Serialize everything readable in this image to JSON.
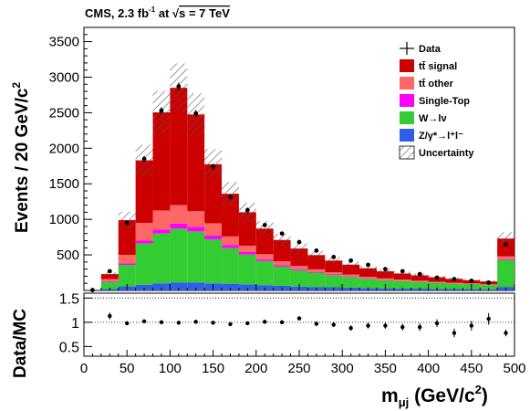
{
  "chart_data": {
    "type": "bar",
    "title": "CMS, 2.3 fb",
    "title_sup": "-1",
    "title_mid": " at ",
    "title_sqrt": "s = 7 TeV",
    "ylabel_main": "Events / 20 GeV/c",
    "ylabel_main_sup": "2",
    "ylabel_ratio": "Data/MC",
    "xlabel": "m",
    "xlabel_sub": "μj",
    "xlabel_unit": " (GeV/c",
    "xlabel_unit_sup": "2",
    "xlabel_unit_close": ")",
    "xlim": [
      0,
      500
    ],
    "ylim": [
      0,
      3700
    ],
    "ratio_ylim": [
      0.3,
      1.6
    ],
    "x_ticks": [
      "0",
      "50",
      "100",
      "150",
      "200",
      "250",
      "300",
      "350",
      "400",
      "450",
      "500"
    ],
    "y_ticks": [
      "500",
      "1000",
      "1500",
      "2000",
      "2500",
      "3000",
      "3500"
    ],
    "ratio_ticks": [
      "0.5",
      "1",
      "1.5"
    ],
    "bin_low": [
      0,
      20,
      40,
      60,
      80,
      100,
      120,
      140,
      160,
      180,
      200,
      220,
      240,
      260,
      280,
      300,
      320,
      340,
      360,
      380,
      400,
      420,
      440,
      460,
      480
    ],
    "bin_width": 20,
    "legend_position": "top-right",
    "series": [
      {
        "name": "Z/γ*→l⁺l⁻",
        "color": "#2f5fe8",
        "values": [
          0,
          20,
          60,
          80,
          100,
          110,
          110,
          100,
          95,
          85,
          75,
          65,
          55,
          50,
          45,
          40,
          35,
          30,
          28,
          25,
          22,
          20,
          18,
          16,
          50
        ]
      },
      {
        "name": "W→lν",
        "color": "#33cc33",
        "values": [
          0,
          100,
          300,
          580,
          700,
          760,
          720,
          620,
          500,
          420,
          340,
          270,
          230,
          200,
          170,
          150,
          130,
          115,
          105,
          95,
          85,
          75,
          70,
          60,
          380
        ]
      },
      {
        "name": "Single-Top",
        "color": "#ff00ff",
        "values": [
          0,
          10,
          20,
          40,
          55,
          70,
          65,
          55,
          45,
          35,
          25,
          20,
          15,
          12,
          10,
          8,
          7,
          6,
          5,
          5,
          4,
          4,
          3,
          3,
          10
        ]
      },
      {
        "name": "tt̄ other",
        "color": "#ff6666",
        "values": [
          0,
          30,
          120,
          250,
          270,
          260,
          220,
          170,
          120,
          90,
          70,
          55,
          45,
          35,
          30,
          25,
          20,
          18,
          15,
          12,
          10,
          9,
          8,
          7,
          40
        ]
      },
      {
        "name": "tt̄ signal",
        "color": "#cc0000",
        "values": [
          0,
          70,
          490,
          880,
          1380,
          1650,
          1360,
          830,
          600,
          470,
          360,
          300,
          245,
          200,
          165,
          140,
          120,
          100,
          85,
          75,
          65,
          55,
          45,
          40,
          250
        ]
      }
    ],
    "uncertainty": {
      "name": "Uncertainty",
      "relative": [
        0,
        0.12,
        0.12,
        0.12,
        0.12,
        0.12,
        0.12,
        0.12,
        0.12,
        0.12,
        0.12,
        0.12,
        0.12,
        0.12,
        0.12,
        0.12,
        0.12,
        0.12,
        0.12,
        0.12,
        0.12,
        0.12,
        0.12,
        0.12,
        0.12
      ]
    },
    "data": {
      "name": "Data",
      "x": [
        10,
        30,
        50,
        70,
        90,
        110,
        130,
        150,
        170,
        190,
        210,
        230,
        250,
        270,
        290,
        310,
        330,
        350,
        370,
        390,
        410,
        430,
        450,
        470,
        490
      ],
      "y": [
        5,
        270,
        950,
        1850,
        2530,
        2870,
        2490,
        1740,
        1310,
        1130,
        920,
        800,
        680,
        560,
        470,
        420,
        360,
        300,
        270,
        230,
        180,
        160,
        135,
        110,
        650
      ],
      "yerr": [
        3,
        16,
        31,
        43,
        50,
        54,
        50,
        42,
        36,
        34,
        30,
        28,
        26,
        24,
        22,
        20,
        19,
        17,
        16,
        15,
        13,
        13,
        12,
        10,
        25
      ]
    },
    "ratio": {
      "x": [
        30,
        50,
        70,
        90,
        110,
        130,
        150,
        170,
        190,
        210,
        230,
        250,
        270,
        290,
        310,
        330,
        350,
        370,
        390,
        410,
        430,
        450,
        470,
        490
      ],
      "y": [
        1.13,
        0.98,
        1.02,
        1.0,
        0.99,
        1.01,
        0.99,
        0.96,
        0.98,
        1.01,
        1.0,
        1.08,
        0.97,
        0.95,
        0.88,
        0.93,
        0.93,
        0.9,
        0.9,
        0.98,
        0.78,
        0.93,
        1.07,
        0.78
      ],
      "yerr": [
        0.07,
        0.04,
        0.03,
        0.025,
        0.025,
        0.025,
        0.025,
        0.03,
        0.035,
        0.035,
        0.04,
        0.045,
        0.05,
        0.05,
        0.055,
        0.06,
        0.065,
        0.07,
        0.08,
        0.08,
        0.09,
        0.1,
        0.12,
        0.07
      ]
    }
  }
}
